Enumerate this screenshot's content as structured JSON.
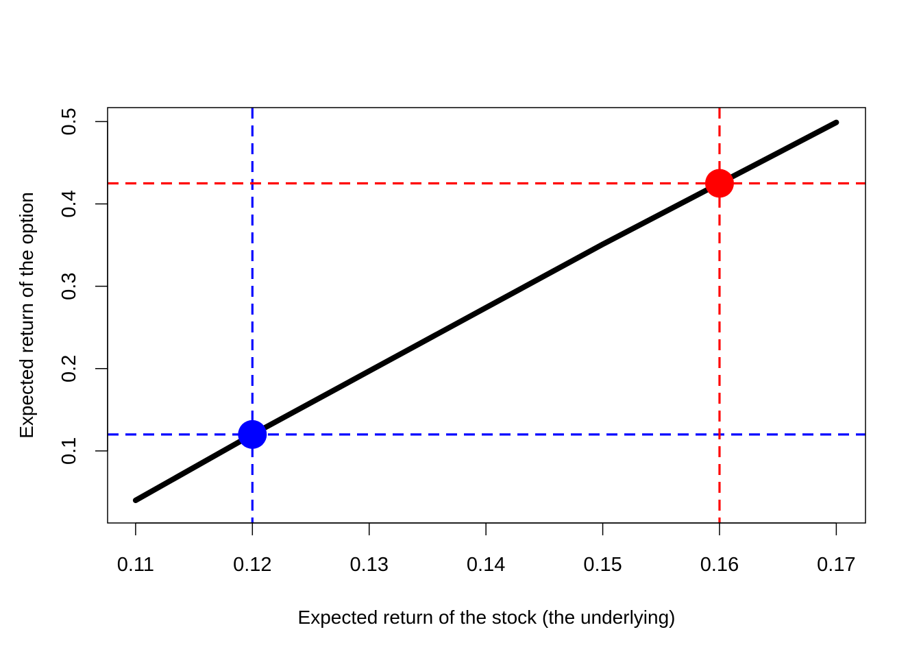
{
  "chart_data": {
    "type": "line",
    "xlabel": "Expected return of the stock (the underlying)",
    "ylabel": "Expected return of the option",
    "xlim": [
      0.1076,
      0.1725
    ],
    "ylim": [
      0.0125,
      0.517
    ],
    "x_ticks": [
      0.11,
      0.12,
      0.13,
      0.14,
      0.15,
      0.16,
      0.17
    ],
    "x_tick_labels": [
      "0.11",
      "0.12",
      "0.13",
      "0.14",
      "0.15",
      "0.16",
      "0.17"
    ],
    "y_ticks": [
      0.1,
      0.2,
      0.3,
      0.4,
      0.5
    ],
    "y_tick_labels": [
      "0.1",
      "0.2",
      "0.3",
      "0.4",
      "0.5"
    ],
    "grid": false,
    "line": {
      "color": "#000000",
      "x": [
        0.11,
        0.12,
        0.13,
        0.14,
        0.15,
        0.16,
        0.17
      ],
      "y": [
        0.04,
        0.12,
        0.197,
        0.274,
        0.351,
        0.425,
        0.499
      ]
    },
    "points": [
      {
        "x": 0.12,
        "y": 0.12,
        "color": "#0000ff"
      },
      {
        "x": 0.16,
        "y": 0.425,
        "color": "#ff0000"
      }
    ],
    "reference_lines": [
      {
        "orientation": "vertical",
        "value": 0.12,
        "color": "#0000ff",
        "style": "dashed"
      },
      {
        "orientation": "horizontal",
        "value": 0.12,
        "color": "#0000ff",
        "style": "dashed"
      },
      {
        "orientation": "vertical",
        "value": 0.16,
        "color": "#ff0000",
        "style": "dashed"
      },
      {
        "orientation": "horizontal",
        "value": 0.425,
        "color": "#ff0000",
        "style": "dashed"
      }
    ]
  }
}
